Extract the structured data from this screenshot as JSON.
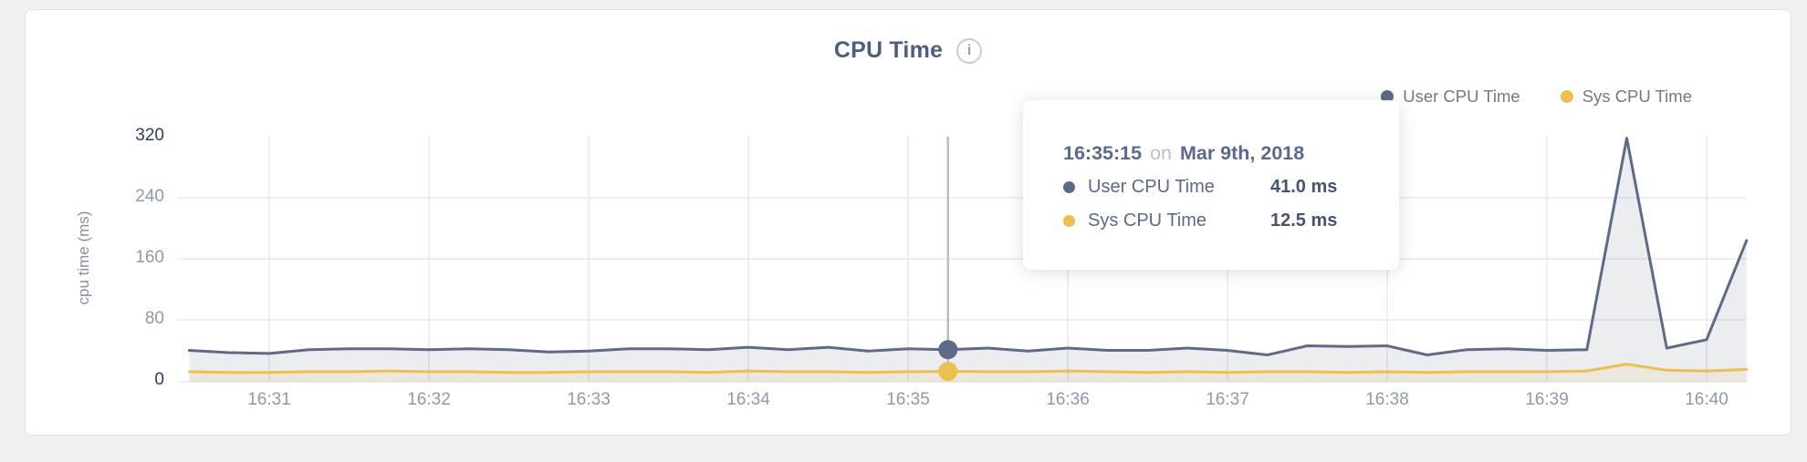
{
  "page": {
    "background": "#f1f1f3",
    "card_background": "#ffffff"
  },
  "header": {
    "title": "CPU Time",
    "info_icon_glyph": "i"
  },
  "legend": {
    "items": [
      {
        "label": "User CPU Time",
        "color": "#5d6a88"
      },
      {
        "label": "Sys CPU Time",
        "color": "#ecc04e"
      }
    ]
  },
  "tooltip": {
    "time": "16:35:15",
    "conjunction": "on",
    "date": "Mar 9th, 2018",
    "rows": [
      {
        "label": "User CPU Time",
        "value": "41.0 ms",
        "color": "#5d6a88"
      },
      {
        "label": "Sys CPU Time",
        "value": "12.5 ms",
        "color": "#ecc04e"
      }
    ]
  },
  "chart_data": {
    "type": "area",
    "title": "CPU Time",
    "xlabel": "",
    "ylabel": "cpu time (ms)",
    "ylim": [
      0,
      320
    ],
    "yticks": [
      0,
      80,
      160,
      240,
      320
    ],
    "ytick_emphasis": [
      0,
      320
    ],
    "xtick_labels": [
      "16:31",
      "16:32",
      "16:33",
      "16:34",
      "16:35",
      "16:36",
      "16:37",
      "16:38",
      "16:39",
      "16:40"
    ],
    "start_time": "16:30:30",
    "interval_seconds": 15,
    "point_count": 40,
    "grid": true,
    "legend_position": "top-right",
    "series": [
      {
        "name": "User CPU Time",
        "color": "#5d6a88",
        "fill": "rgba(94,108,138,0.12)",
        "values": [
          40,
          37,
          36,
          41,
          42,
          42,
          41,
          42,
          41,
          38,
          39,
          42,
          42,
          41,
          44,
          41,
          44,
          39,
          42,
          41,
          43,
          39,
          43,
          40,
          40,
          43,
          40,
          34,
          46,
          45,
          46,
          34,
          41,
          42,
          40,
          41,
          318,
          43,
          54,
          184
        ]
      },
      {
        "name": "Sys CPU Time",
        "color": "#ecc04e",
        "fill": "rgba(238,193,82,0.12)",
        "values": [
          12,
          11,
          11,
          12,
          12,
          13,
          12,
          12,
          11,
          11,
          12,
          12,
          12,
          11,
          13,
          12,
          12,
          11,
          12,
          12.5,
          12,
          12,
          13,
          12,
          11,
          12,
          11,
          12,
          12,
          11,
          12,
          11,
          12,
          12,
          12,
          13,
          22,
          14,
          13,
          15
        ]
      }
    ],
    "hover": {
      "index": 19,
      "time": "16:35:15",
      "date": "Mar 9th, 2018",
      "user_value_ms": 41.0,
      "sys_value_ms": 12.5
    }
  }
}
